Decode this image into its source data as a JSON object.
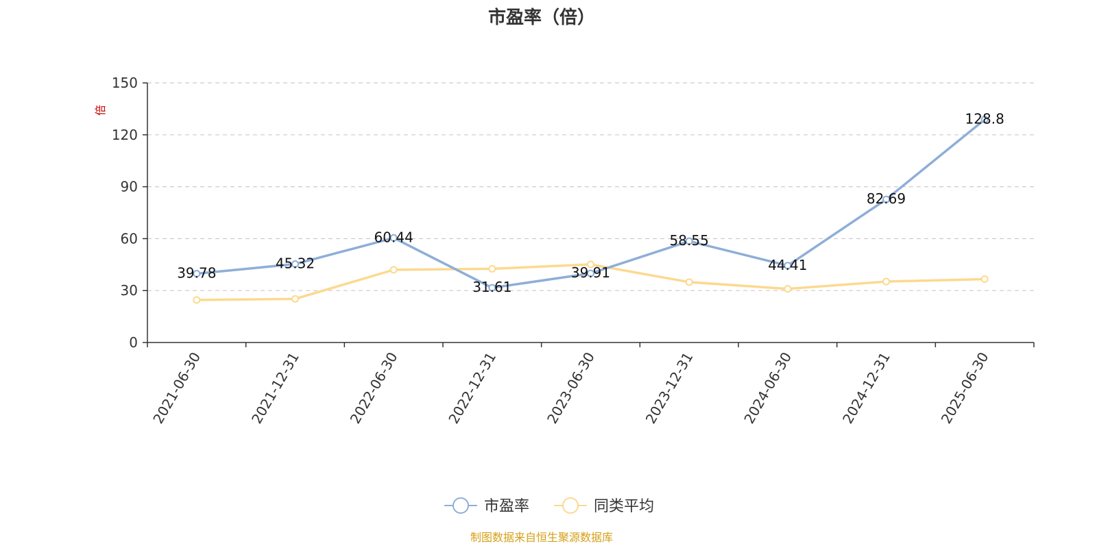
{
  "chart_data": {
    "type": "line",
    "title": "市盈率（倍）",
    "ylabel": "倍",
    "ylim": [
      0,
      150
    ],
    "yticks": [
      0,
      30,
      60,
      90,
      120,
      150
    ],
    "grid": "horizontal-dashed",
    "legend_position": "bottom-center",
    "categories": [
      "2021-06-30",
      "2021-12-31",
      "2022-06-30",
      "2022-12-31",
      "2023-06-30",
      "2023-12-31",
      "2024-06-30",
      "2024-12-31",
      "2025-06-30"
    ],
    "series": [
      {
        "name": "市盈率",
        "color": "#8eaed8",
        "values": [
          39.78,
          45.32,
          60.44,
          31.61,
          39.91,
          58.55,
          44.41,
          82.69,
          128.8
        ],
        "labels": [
          "39.78",
          "45.32",
          "60.44",
          "31.61",
          "39.91",
          "58.55",
          "44.41",
          "82.69",
          "128.8"
        ]
      },
      {
        "name": "同类平均",
        "color": "#fcd98f",
        "values": [
          24.6,
          25.2,
          42.0,
          42.6,
          45.1,
          34.9,
          31.0,
          35.2,
          36.6
        ]
      }
    ],
    "source": "制图数据来自恒生聚源数据库",
    "source_color": "#d4a017",
    "ylabel_color": "#cc0000"
  }
}
